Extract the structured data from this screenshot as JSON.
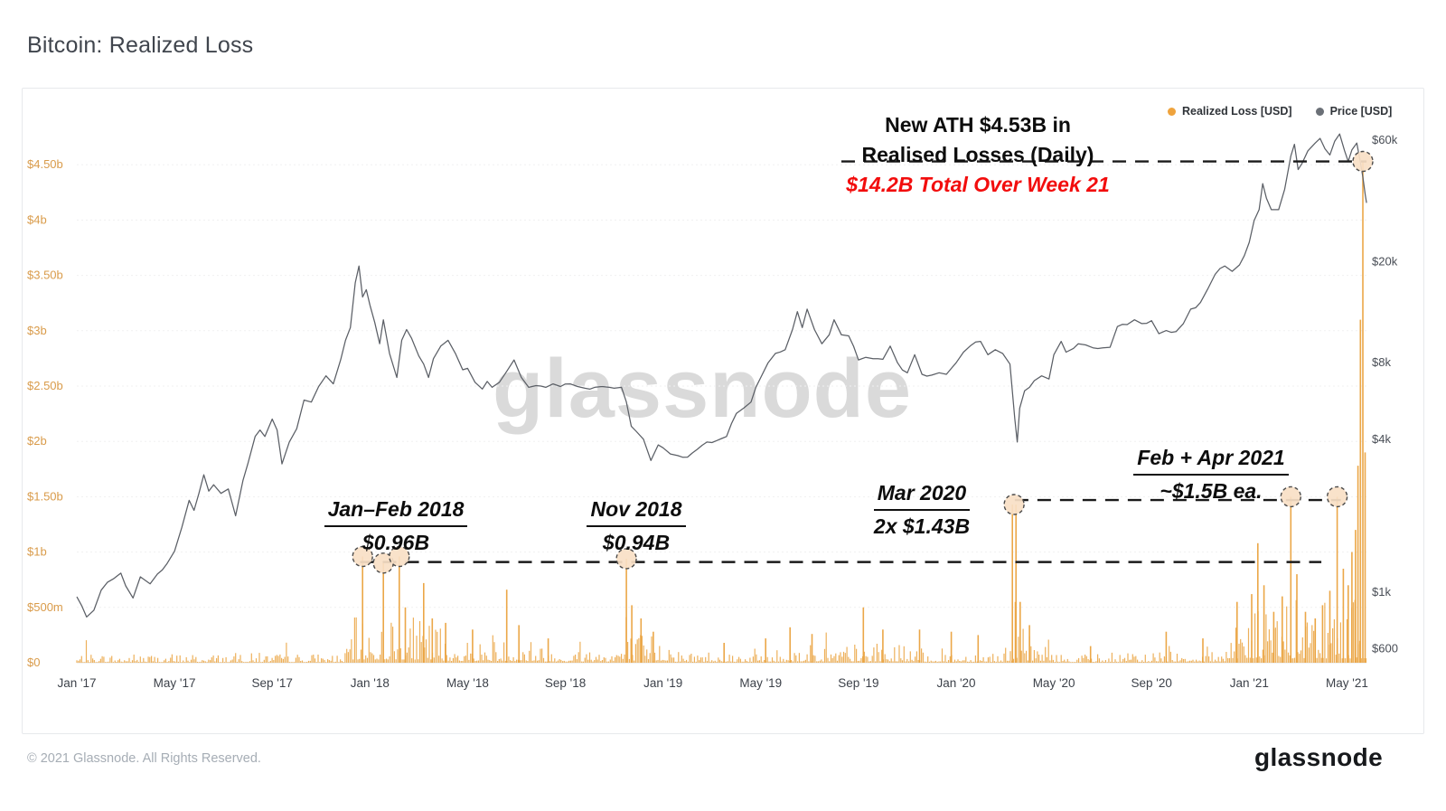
{
  "page": {
    "title": "Bitcoin: Realized Loss",
    "footer_copyright": "© 2021 Glassnode. All Rights Reserved.",
    "brand_logo": "glassnode",
    "watermark": "glassnode"
  },
  "legend": [
    {
      "label": "Realized Loss [USD]",
      "color": "#efa33d"
    },
    {
      "label": "Price [USD]",
      "color": "#6b7077"
    }
  ],
  "annotations": {
    "ath": {
      "line1": "New ATH $4.53B in",
      "line2": "Realised Losses (Daily)",
      "line3": "$14.2B Total Over Week 21"
    },
    "janfeb2018": {
      "title": "Jan–Feb 2018",
      "value": "$0.96B"
    },
    "nov2018": {
      "title": "Nov 2018",
      "value": "$0.94B"
    },
    "mar2020": {
      "title": "Mar 2020",
      "value": "2x $1.43B"
    },
    "febapr2021": {
      "title": "Feb + Apr 2021",
      "value": "~$1.5B ea."
    }
  },
  "chart_data": {
    "type": "combo",
    "title": "Bitcoin: Realized Loss",
    "grid": "horizontal-only",
    "legend_position": "top-right",
    "x_axis": {
      "start": "Jan 2017",
      "end": "May 2021",
      "tick_labels": [
        "Jan '17",
        "May '17",
        "Sep '17",
        "Jan '18",
        "May '18",
        "Sep '18",
        "Jan '19",
        "May '19",
        "Sep '19",
        "Jan '20",
        "May '20",
        "Sep '20",
        "Jan '21",
        "May '21"
      ],
      "tick_month_offsets": [
        0,
        4,
        8,
        12,
        16,
        20,
        24,
        28,
        32,
        36,
        40,
        44,
        48,
        52
      ]
    },
    "left_axis": {
      "series": "Realized Loss [USD]",
      "scale": "linear",
      "unit": "USD",
      "tick_labels": [
        "$0",
        "$500m",
        "$1b",
        "$1.50b",
        "$2b",
        "$2.50b",
        "$3b",
        "$3.50b",
        "$4b",
        "$4.50b"
      ],
      "tick_values_b": [
        0,
        0.5,
        1,
        1.5,
        2,
        2.5,
        3,
        3.5,
        4,
        4.5
      ],
      "range_b": [
        0,
        5.05
      ]
    },
    "right_axis": {
      "series": "Price [USD]",
      "scale": "log",
      "unit": "USD",
      "tick_labels": [
        "$600",
        "$1k",
        "$4k",
        "$8k",
        "$20k",
        "$60k"
      ],
      "tick_values": [
        600,
        1000,
        4000,
        8000,
        20000,
        60000
      ]
    },
    "price_series": {
      "name": "Price [USD]",
      "color": "#5b5f66",
      "points_month_usd": [
        [
          0,
          960
        ],
        [
          0.4,
          800
        ],
        [
          0.7,
          850
        ],
        [
          1,
          1020
        ],
        [
          1.5,
          1130
        ],
        [
          1.8,
          1190
        ],
        [
          2,
          1060
        ],
        [
          2.3,
          950
        ],
        [
          2.6,
          1150
        ],
        [
          3,
          1080
        ],
        [
          3.3,
          1180
        ],
        [
          3.7,
          1300
        ],
        [
          4,
          1450
        ],
        [
          4.3,
          1800
        ],
        [
          4.6,
          2300
        ],
        [
          4.8,
          2100
        ],
        [
          5,
          2450
        ],
        [
          5.2,
          2900
        ],
        [
          5.4,
          2500
        ],
        [
          5.6,
          2650
        ],
        [
          5.9,
          2450
        ],
        [
          6.2,
          2550
        ],
        [
          6.5,
          2000
        ],
        [
          6.8,
          2750
        ],
        [
          7,
          3200
        ],
        [
          7.3,
          4100
        ],
        [
          7.5,
          4350
        ],
        [
          7.7,
          4100
        ],
        [
          8,
          4800
        ],
        [
          8.2,
          4350
        ],
        [
          8.4,
          3200
        ],
        [
          8.7,
          3900
        ],
        [
          9,
          4400
        ],
        [
          9.3,
          5700
        ],
        [
          9.6,
          5600
        ],
        [
          9.9,
          6450
        ],
        [
          10.2,
          7100
        ],
        [
          10.5,
          6600
        ],
        [
          10.8,
          8200
        ],
        [
          11,
          9800
        ],
        [
          11.2,
          11000
        ],
        [
          11.4,
          16500
        ],
        [
          11.55,
          19200
        ],
        [
          11.7,
          14500
        ],
        [
          11.85,
          15500
        ],
        [
          12,
          13500
        ],
        [
          12.2,
          11500
        ],
        [
          12.4,
          9500
        ],
        [
          12.55,
          11800
        ],
        [
          12.8,
          8700
        ],
        [
          13.1,
          7000
        ],
        [
          13.3,
          9800
        ],
        [
          13.5,
          10800
        ],
        [
          13.7,
          10000
        ],
        [
          14,
          8500
        ],
        [
          14.2,
          7900
        ],
        [
          14.4,
          7000
        ],
        [
          14.6,
          8300
        ],
        [
          14.9,
          9300
        ],
        [
          15.2,
          9800
        ],
        [
          15.5,
          8700
        ],
        [
          15.8,
          7500
        ],
        [
          16,
          7600
        ],
        [
          16.3,
          6700
        ],
        [
          16.6,
          6300
        ],
        [
          16.8,
          6750
        ],
        [
          17,
          6400
        ],
        [
          17.3,
          6700
        ],
        [
          17.6,
          7400
        ],
        [
          17.9,
          8200
        ],
        [
          18.2,
          7000
        ],
        [
          18.5,
          6400
        ],
        [
          18.8,
          6500
        ],
        [
          19.2,
          6400
        ],
        [
          19.5,
          6600
        ],
        [
          19.8,
          6450
        ],
        [
          20.2,
          6600
        ],
        [
          20.5,
          6450
        ],
        [
          20.8,
          6350
        ],
        [
          21.2,
          6400
        ],
        [
          21.5,
          6450
        ],
        [
          21.8,
          6400
        ],
        [
          22,
          6350
        ],
        [
          22.3,
          6400
        ],
        [
          22.5,
          5600
        ],
        [
          22.7,
          4500
        ],
        [
          22.9,
          4300
        ],
        [
          23.2,
          4000
        ],
        [
          23.5,
          3300
        ],
        [
          23.8,
          3800
        ],
        [
          24,
          3700
        ],
        [
          24.3,
          3500
        ],
        [
          24.6,
          3450
        ],
        [
          25,
          3400
        ],
        [
          25.4,
          3650
        ],
        [
          25.8,
          3900
        ],
        [
          26.2,
          3950
        ],
        [
          26.6,
          4100
        ],
        [
          27,
          5050
        ],
        [
          27.3,
          5300
        ],
        [
          27.6,
          5600
        ],
        [
          28,
          7000
        ],
        [
          28.3,
          8000
        ],
        [
          28.6,
          8700
        ],
        [
          29,
          9000
        ],
        [
          29.3,
          10800
        ],
        [
          29.5,
          12700
        ],
        [
          29.7,
          11000
        ],
        [
          29.9,
          13000
        ],
        [
          30.2,
          10800
        ],
        [
          30.5,
          9500
        ],
        [
          30.8,
          10300
        ],
        [
          31,
          11800
        ],
        [
          31.3,
          10300
        ],
        [
          31.6,
          10200
        ],
        [
          32,
          8200
        ],
        [
          32.3,
          8400
        ],
        [
          32.6,
          8300
        ],
        [
          33,
          8250
        ],
        [
          33.3,
          9300
        ],
        [
          33.6,
          8000
        ],
        [
          34,
          7300
        ],
        [
          34.3,
          8600
        ],
        [
          34.6,
          7200
        ],
        [
          35,
          7150
        ],
        [
          35.3,
          7300
        ],
        [
          35.6,
          7200
        ],
        [
          36,
          8000
        ],
        [
          36.3,
          8800
        ],
        [
          36.6,
          9350
        ],
        [
          37,
          9700
        ],
        [
          37.3,
          8600
        ],
        [
          37.6,
          9000
        ],
        [
          37.9,
          8700
        ],
        [
          38.2,
          7900
        ],
        [
          38.4,
          4800
        ],
        [
          38.5,
          3900
        ],
        [
          38.6,
          5300
        ],
        [
          38.8,
          6200
        ],
        [
          39,
          6400
        ],
        [
          39.2,
          6800
        ],
        [
          39.5,
          7100
        ],
        [
          39.8,
          6900
        ],
        [
          40,
          8600
        ],
        [
          40.3,
          9700
        ],
        [
          40.5,
          8800
        ],
        [
          40.8,
          9100
        ],
        [
          41,
          9500
        ],
        [
          41.3,
          9400
        ],
        [
          41.6,
          9150
        ],
        [
          42,
          9150
        ],
        [
          42.3,
          9200
        ],
        [
          42.6,
          11100
        ],
        [
          43,
          11300
        ],
        [
          43.3,
          11800
        ],
        [
          43.6,
          11400
        ],
        [
          44,
          11700
        ],
        [
          44.3,
          10400
        ],
        [
          44.6,
          10700
        ],
        [
          45,
          10600
        ],
        [
          45.3,
          11400
        ],
        [
          45.6,
          13000
        ],
        [
          46,
          13800
        ],
        [
          46.3,
          15600
        ],
        [
          46.6,
          17800
        ],
        [
          47,
          19200
        ],
        [
          47.3,
          18300
        ],
        [
          47.6,
          19400
        ],
        [
          48,
          23800
        ],
        [
          48.2,
          29000
        ],
        [
          48.4,
          32000
        ],
        [
          48.55,
          40500
        ],
        [
          48.7,
          35500
        ],
        [
          48.9,
          32000
        ],
        [
          49.2,
          32000
        ],
        [
          49.45,
          38500
        ],
        [
          49.7,
          52000
        ],
        [
          49.85,
          57800
        ],
        [
          50,
          46000
        ],
        [
          50.15,
          48500
        ],
        [
          50.4,
          54500
        ],
        [
          50.7,
          58500
        ],
        [
          50.9,
          61000
        ],
        [
          51.1,
          55500
        ],
        [
          51.3,
          52500
        ],
        [
          51.5,
          59500
        ],
        [
          51.7,
          63500
        ],
        [
          51.9,
          54500
        ],
        [
          52.05,
          49500
        ],
        [
          52.2,
          55000
        ],
        [
          52.4,
          58500
        ],
        [
          52.55,
          49000
        ],
        [
          52.65,
          43000
        ],
        [
          52.75,
          36500
        ],
        [
          52.8,
          34000
        ]
      ]
    },
    "loss_series": {
      "name": "Realized Loss [USD]",
      "color": "#eaa23e",
      "bar_step_months": 0.065,
      "noise_seed": 7,
      "noise_eras_month_ampB": [
        [
          0,
          11,
          0.035
        ],
        [
          11,
          15,
          0.16
        ],
        [
          15,
          19,
          0.09
        ],
        [
          19,
          22,
          0.06
        ],
        [
          22,
          24.5,
          0.11
        ],
        [
          24.5,
          29,
          0.05
        ],
        [
          29,
          34,
          0.07
        ],
        [
          34,
          38,
          0.05
        ],
        [
          38,
          40,
          0.1
        ],
        [
          40,
          44,
          0.035
        ],
        [
          44,
          47,
          0.06
        ],
        [
          47,
          52.85,
          0.22
        ]
      ],
      "spikes_month_valueB": [
        [
          11.7,
          0.96
        ],
        [
          12.55,
          0.9
        ],
        [
          13.2,
          0.96
        ],
        [
          13.45,
          0.5
        ],
        [
          14.2,
          0.72
        ],
        [
          14.55,
          0.4
        ],
        [
          15.1,
          0.36
        ],
        [
          16.2,
          0.3
        ],
        [
          17.6,
          0.66
        ],
        [
          18.1,
          0.34
        ],
        [
          19.3,
          0.22
        ],
        [
          22.5,
          0.94
        ],
        [
          22.72,
          0.52
        ],
        [
          23.1,
          0.4
        ],
        [
          23.6,
          0.28
        ],
        [
          26.5,
          0.18
        ],
        [
          28.2,
          0.22
        ],
        [
          29.2,
          0.32
        ],
        [
          30.1,
          0.26
        ],
        [
          32.2,
          0.5
        ],
        [
          33.0,
          0.3
        ],
        [
          34.5,
          0.3
        ],
        [
          35.8,
          0.28
        ],
        [
          36.9,
          0.25
        ],
        [
          38.3,
          1.43
        ],
        [
          38.45,
          1.43
        ],
        [
          38.62,
          0.55
        ],
        [
          39.0,
          0.34
        ],
        [
          41.5,
          0.15
        ],
        [
          44.6,
          0.28
        ],
        [
          46.1,
          0.22
        ],
        [
          47.5,
          0.55
        ],
        [
          48.1,
          0.62
        ],
        [
          48.35,
          1.08
        ],
        [
          48.6,
          0.7
        ],
        [
          49.0,
          0.46
        ],
        [
          49.35,
          0.6
        ],
        [
          49.7,
          1.5
        ],
        [
          49.95,
          0.8
        ],
        [
          50.3,
          0.46
        ],
        [
          50.7,
          0.4
        ],
        [
          51.0,
          0.52
        ],
        [
          51.3,
          0.65
        ],
        [
          51.6,
          1.5
        ],
        [
          51.85,
          0.85
        ],
        [
          52.05,
          0.7
        ],
        [
          52.2,
          1.0
        ],
        [
          52.35,
          1.2
        ],
        [
          52.45,
          1.78
        ],
        [
          52.55,
          3.1
        ],
        [
          52.65,
          4.53
        ],
        [
          52.74,
          1.9
        ]
      ],
      "ath_event": {
        "value_b": 4.53,
        "label": "New ATH $4.53B in Realised Losses (Daily)",
        "week_total": "$14.2B Total Over Week 21"
      }
    },
    "highlight_circles_month_valueB": [
      [
        11.7,
        0.96
      ],
      [
        12.55,
        0.9
      ],
      [
        13.2,
        0.96
      ],
      [
        22.5,
        0.94
      ],
      [
        38.37,
        1.43
      ],
      [
        49.7,
        1.5
      ],
      [
        51.6,
        1.5
      ],
      [
        52.65,
        4.53
      ]
    ],
    "dashed_levels": [
      {
        "value_b": 4.53,
        "from_m": 31.3,
        "to_m": 52.8
      },
      {
        "value_b": 0.91,
        "from_m": 11.6,
        "to_m": 50.95
      },
      {
        "value_b": 1.47,
        "from_m": 38.4,
        "to_m": 51.75
      }
    ]
  }
}
